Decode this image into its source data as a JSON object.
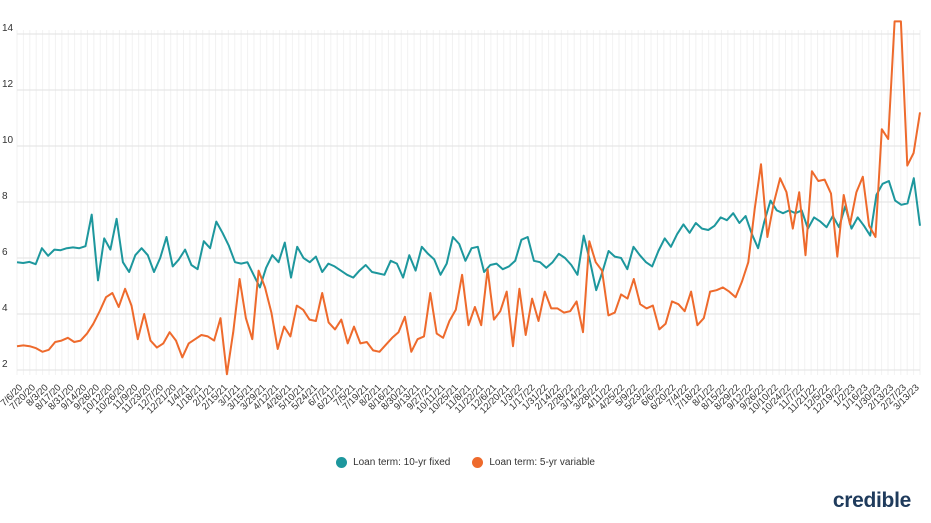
{
  "brand": {
    "logo_text": "credible"
  },
  "chart_data": {
    "type": "line",
    "title": "",
    "xlabel": "",
    "ylabel": "",
    "ylim": [
      1.5,
      15
    ],
    "yticks": [
      2,
      4,
      6,
      8,
      10,
      12,
      14
    ],
    "grid": true,
    "legend_position": "bottom-center",
    "colors": {
      "fixed": "#1d979d",
      "variable": "#ee6a2c"
    },
    "x_tick_labels": [
      "7/6/20",
      "7/20/20",
      "8/3/20",
      "8/17/20",
      "8/31/20",
      "9/14/20",
      "9/28/20",
      "10/12/20",
      "10/26/20",
      "11/9/20",
      "11/23/20",
      "12/7/20",
      "12/21/20",
      "1/4/21",
      "1/18/21",
      "2/1/21",
      "2/15/21",
      "3/1/21",
      "3/15/21",
      "3/29/21",
      "4/12/21",
      "4/26/21",
      "5/10/21",
      "5/24/21",
      "6/7/21",
      "6/21/21",
      "7/5/21",
      "7/19/21",
      "8/2/21",
      "8/16/21",
      "8/30/21",
      "9/13/21",
      "9/27/21",
      "10/11/21",
      "10/25/21",
      "11/8/21",
      "11/22/21",
      "12/6/21",
      "12/20/21",
      "1/3/22",
      "1/17/22",
      "1/31/22",
      "2/14/22",
      "2/28/22",
      "3/14/22",
      "3/28/22",
      "4/11/22",
      "4/25/22",
      "5/9/22",
      "5/23/22",
      "6/6/22",
      "6/20/22",
      "7/4/22",
      "7/18/22",
      "8/1/22",
      "8/15/22",
      "8/29/22",
      "9/12/22",
      "9/26/22",
      "10/10/22",
      "10/24/22",
      "11/7/22",
      "11/21/22",
      "12/5/22",
      "12/19/22",
      "1/2/23",
      "1/16/23",
      "1/30/23",
      "2/13/23",
      "2/27/23",
      "3/13/23"
    ],
    "series": [
      {
        "name": "Loan term: 10-yr fixed",
        "color": "#1d979d",
        "values": [
          5.85,
          5.82,
          5.86,
          5.78,
          6.35,
          6.08,
          6.3,
          6.28,
          6.35,
          6.38,
          6.35,
          6.42,
          7.55,
          5.2,
          6.7,
          6.3,
          7.4,
          5.85,
          5.5,
          6.1,
          6.35,
          6.1,
          5.5,
          6.0,
          6.75,
          5.7,
          5.95,
          6.3,
          5.75,
          5.6,
          6.6,
          6.35,
          7.3,
          6.9,
          6.45,
          5.85,
          5.8,
          5.85,
          5.4,
          4.95,
          5.65,
          6.1,
          5.85,
          6.55,
          5.3,
          6.4,
          6.0,
          5.85,
          6.05,
          5.5,
          5.8,
          5.7,
          5.55,
          5.4,
          5.3,
          5.55,
          5.75,
          5.5,
          5.45,
          5.4,
          5.9,
          5.8,
          5.3,
          6.1,
          5.55,
          6.4,
          6.15,
          5.95,
          5.4,
          5.8,
          6.75,
          6.5,
          5.9,
          6.35,
          6.4,
          5.5,
          5.75,
          5.8,
          5.6,
          5.7,
          5.9,
          6.65,
          6.75,
          5.9,
          5.85,
          5.65,
          5.85,
          6.15,
          6.0,
          5.75,
          5.4,
          6.8,
          5.9,
          4.85,
          5.5,
          6.25,
          6.05,
          6.0,
          5.6,
          6.4,
          6.1,
          5.85,
          5.7,
          6.25,
          6.7,
          6.4,
          6.85,
          7.2,
          6.9,
          7.25,
          7.05,
          7.0,
          7.15,
          7.45,
          7.35,
          7.6,
          7.25,
          7.5,
          6.85,
          6.35,
          7.3,
          8.05,
          7.7,
          7.6,
          7.7,
          7.6,
          7.7,
          7.05,
          7.45,
          7.3,
          7.1,
          7.5,
          7.1,
          7.85,
          7.05,
          7.45,
          7.15,
          6.8,
          8.25,
          8.65,
          8.75,
          8.05,
          7.9,
          7.95,
          8.85,
          7.15
        ]
      },
      {
        "name": "Loan term: 5-yr variable",
        "color": "#ee6a2c",
        "values": [
          2.85,
          2.88,
          2.85,
          2.78,
          2.65,
          2.72,
          3.0,
          3.05,
          3.15,
          3.0,
          3.05,
          3.3,
          3.65,
          4.1,
          4.6,
          4.75,
          4.25,
          4.9,
          4.3,
          3.1,
          4.0,
          3.05,
          2.8,
          2.95,
          3.35,
          3.05,
          2.45,
          2.95,
          3.1,
          3.25,
          3.2,
          3.05,
          3.85,
          1.85,
          3.35,
          5.25,
          3.85,
          3.1,
          5.55,
          4.95,
          4.05,
          2.75,
          3.55,
          3.2,
          4.3,
          4.15,
          3.8,
          3.75,
          4.75,
          3.7,
          3.45,
          3.8,
          2.95,
          3.55,
          2.95,
          3.0,
          2.7,
          2.65,
          2.9,
          3.15,
          3.35,
          3.9,
          2.65,
          3.1,
          3.2,
          4.75,
          3.3,
          3.15,
          3.75,
          4.15,
          5.4,
          3.6,
          4.25,
          3.6,
          5.6,
          3.8,
          4.1,
          4.8,
          2.85,
          4.9,
          3.25,
          4.55,
          3.75,
          4.8,
          4.2,
          4.2,
          4.05,
          4.1,
          4.45,
          3.35,
          6.6,
          5.85,
          5.55,
          3.95,
          4.05,
          4.7,
          4.55,
          5.25,
          4.35,
          4.2,
          4.3,
          3.45,
          3.65,
          4.45,
          4.35,
          4.1,
          4.8,
          3.6,
          3.85,
          4.8,
          4.85,
          4.95,
          4.8,
          4.6,
          5.15,
          5.85,
          7.75,
          9.35,
          6.75,
          7.95,
          8.85,
          8.35,
          7.05,
          8.35,
          6.1,
          9.1,
          8.75,
          8.8,
          8.3,
          6.05,
          8.25,
          7.2,
          8.35,
          8.9,
          7.15,
          6.75,
          10.6,
          10.25,
          14.45,
          14.45,
          9.3,
          9.75,
          11.2
        ]
      }
    ]
  }
}
